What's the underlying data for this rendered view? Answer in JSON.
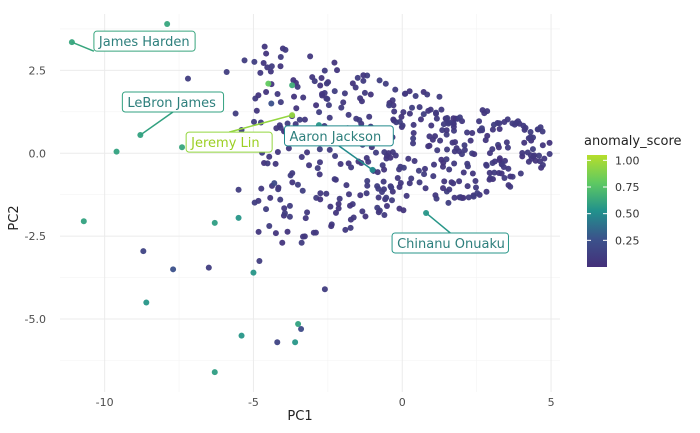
{
  "chart_data": {
    "type": "scatter",
    "title": "",
    "xlabel": "PC1",
    "ylabel": "PC2",
    "xlim": [
      -11.5,
      5.3
    ],
    "ylim": [
      -7.2,
      4.2
    ],
    "x_ticks": [
      -10,
      -5,
      0,
      5
    ],
    "y_ticks": [
      -5.0,
      -2.5,
      0.0,
      2.5
    ],
    "x_tick_labels": [
      "-10",
      "-5",
      "0",
      "5"
    ],
    "y_tick_labels": [
      "-5.0",
      "-2.5",
      "0.0",
      "2.5"
    ],
    "grid": true,
    "legend": {
      "title": "anomaly_score",
      "position": "right",
      "ticks": [
        0.25,
        0.5,
        0.75,
        1.0
      ],
      "tick_labels": [
        "0.25",
        "0.50",
        "0.75",
        "1.00"
      ],
      "range": [
        0.0,
        1.05
      ]
    },
    "labeled_points": [
      {
        "label": "James Harden",
        "x": -11.1,
        "y": 3.35,
        "score": 0.62
      },
      {
        "label": "LeBron James",
        "x": -8.8,
        "y": 0.55,
        "score": 0.6
      },
      {
        "label": "Jeremy Lin",
        "x": -3.7,
        "y": 1.15,
        "score": 0.95
      },
      {
        "label": "Aaron Jackson",
        "x": -1.0,
        "y": -0.5,
        "score": 0.5
      },
      {
        "label": "Chinanu Onuaku",
        "x": 0.8,
        "y": -1.8,
        "score": 0.55
      }
    ],
    "outliers": [
      {
        "x": -7.9,
        "y": 3.9,
        "score": 0.62
      },
      {
        "x": -9.6,
        "y": 0.05,
        "score": 0.6
      },
      {
        "x": -10.7,
        "y": -2.05,
        "score": 0.6
      },
      {
        "x": -7.4,
        "y": 0.18,
        "score": 0.62
      },
      {
        "x": -8.7,
        "y": -2.95,
        "score": 0.15
      },
      {
        "x": -8.6,
        "y": -4.5,
        "score": 0.55
      },
      {
        "x": -7.7,
        "y": -3.5,
        "score": 0.25
      },
      {
        "x": -6.3,
        "y": -2.1,
        "score": 0.58
      },
      {
        "x": -5.5,
        "y": -1.95,
        "score": 0.55
      },
      {
        "x": -5.0,
        "y": -3.6,
        "score": 0.55
      },
      {
        "x": -6.5,
        "y": -3.45,
        "score": 0.1
      },
      {
        "x": -6.3,
        "y": -6.6,
        "score": 0.58
      },
      {
        "x": -5.4,
        "y": -5.5,
        "score": 0.55
      },
      {
        "x": -4.2,
        "y": -5.7,
        "score": 0.15
      },
      {
        "x": -3.6,
        "y": -5.7,
        "score": 0.55
      },
      {
        "x": -3.4,
        "y": -5.3,
        "score": 0.2
      },
      {
        "x": -3.5,
        "y": -5.15,
        "score": 0.6
      },
      {
        "x": -5.5,
        "y": -1.1,
        "score": 0.1
      },
      {
        "x": -3.7,
        "y": 2.05,
        "score": 0.65
      },
      {
        "x": -4.5,
        "y": 2.1,
        "score": 0.8
      },
      {
        "x": -4.4,
        "y": 1.5,
        "score": 0.25
      },
      {
        "x": -2.8,
        "y": 0.85,
        "score": 0.55
      },
      {
        "x": -2.6,
        "y": -4.1,
        "score": 0.1
      },
      {
        "x": -4.8,
        "y": -3.25,
        "score": 0.1
      },
      {
        "x": -4.1,
        "y": -1.4,
        "score": 0.1
      },
      {
        "x": -4.3,
        "y": -0.9,
        "score": 0.2
      },
      {
        "x": -5.4,
        "y": 0.7,
        "score": 0.1
      },
      {
        "x": -7.2,
        "y": 2.25,
        "score": 0.1
      },
      {
        "x": -6.9,
        "y": 1.5,
        "score": 0.1
      },
      {
        "x": -5.9,
        "y": 2.45,
        "score": 0.1
      },
      {
        "x": -5.6,
        "y": 1.2,
        "score": 0.1
      },
      {
        "x": -5.3,
        "y": 2.8,
        "score": 0.1
      }
    ],
    "cluster": {
      "description": "dense cloud of low anomaly_score points",
      "score": 0.08,
      "count": 420,
      "x_range": [
        -5.0,
        5.0
      ],
      "y_range": [
        -3.6,
        3.3
      ]
    }
  },
  "colors": {
    "low": "#44307a",
    "mid": "#2a8c8a",
    "high": "#b6de2b",
    "label_border_default": "#2a8c8a",
    "label_text_default": "#2d7f7c",
    "label_text_high": "#9ccf23"
  }
}
